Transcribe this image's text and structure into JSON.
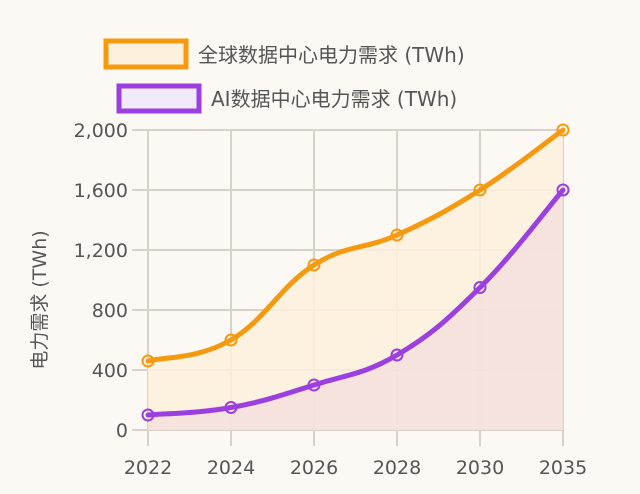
{
  "chart_data": {
    "type": "area",
    "title": "",
    "xlabel": "",
    "ylabel": "电力需求 (TWh)",
    "categories": [
      "2022",
      "2024",
      "2026",
      "2028",
      "2030",
      "2035"
    ],
    "ylim": [
      0,
      2000
    ],
    "yticks": [
      0,
      400,
      800,
      1200,
      1600,
      2000
    ],
    "ytick_labels": [
      "0",
      "400",
      "800",
      "1,200",
      "1,600",
      "2,000"
    ],
    "grid": true,
    "legend_position": "top",
    "series": [
      {
        "name": "全球数据中心电力需求 (TWh)",
        "values": [
          460,
          600,
          1100,
          1300,
          1600,
          2000
        ],
        "color": "#f59a0f",
        "fill": "#fdf0dc"
      },
      {
        "name": "AI数据中心电力需求 (TWh)",
        "values": [
          100,
          150,
          300,
          500,
          950,
          1600
        ],
        "color": "#9b3fe0",
        "fill": "#f3dedc"
      }
    ]
  }
}
